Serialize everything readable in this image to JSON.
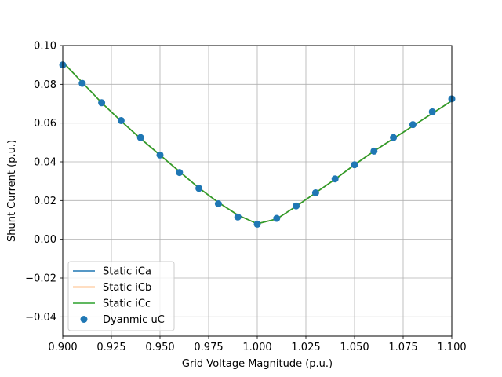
{
  "chart_data": {
    "type": "line",
    "title": "",
    "xlabel": "Grid Voltage Magnitude (p.u.)",
    "ylabel": "Shunt Current (p.u.)",
    "xlim": [
      0.9,
      1.1
    ],
    "ylim": [
      -0.05,
      0.1
    ],
    "xticks": [
      0.9,
      0.925,
      0.95,
      0.975,
      1.0,
      1.025,
      1.05,
      1.075,
      1.1
    ],
    "xtick_labels": [
      "0.900",
      "0.925",
      "0.950",
      "0.975",
      "1.000",
      "1.025",
      "1.050",
      "1.075",
      "1.100"
    ],
    "yticks": [
      -0.04,
      -0.02,
      0.0,
      0.02,
      0.04,
      0.06,
      0.08,
      0.1
    ],
    "ytick_labels": [
      "−0.04",
      "−0.02",
      "0.00",
      "0.02",
      "0.04",
      "0.06",
      "0.08",
      "0.10"
    ],
    "grid": true,
    "legend_position": "lower-left",
    "x": [
      0.9,
      0.91,
      0.92,
      0.93,
      0.94,
      0.95,
      0.96,
      0.97,
      0.98,
      0.99,
      1.0,
      1.01,
      1.02,
      1.03,
      1.04,
      1.05,
      1.06,
      1.07,
      1.08,
      1.09,
      1.1
    ],
    "series": [
      {
        "name": "Static iCa",
        "kind": "line",
        "color": "#1f77b4",
        "values": [
          0.0915,
          0.081,
          0.0705,
          0.061,
          0.052,
          0.0435,
          0.035,
          0.0265,
          0.019,
          0.0125,
          0.008,
          0.0105,
          0.017,
          0.024,
          0.031,
          0.0385,
          0.0455,
          0.052,
          0.0585,
          0.065,
          0.0715
        ]
      },
      {
        "name": "Static iCb",
        "kind": "line",
        "color": "#ff7f0e",
        "values": [
          0.0915,
          0.081,
          0.0705,
          0.061,
          0.052,
          0.0435,
          0.035,
          0.0265,
          0.019,
          0.0125,
          0.008,
          0.0105,
          0.017,
          0.024,
          0.031,
          0.0385,
          0.0455,
          0.052,
          0.0585,
          0.065,
          0.0715
        ]
      },
      {
        "name": "Static iCc",
        "kind": "line",
        "color": "#2ca02c",
        "values": [
          0.0915,
          0.081,
          0.0705,
          0.061,
          0.052,
          0.0435,
          0.035,
          0.0265,
          0.019,
          0.0125,
          0.008,
          0.0105,
          0.017,
          0.024,
          0.031,
          0.0385,
          0.0455,
          0.052,
          0.0585,
          0.065,
          0.0715
        ]
      },
      {
        "name": "Dyanmic uC",
        "kind": "scatter",
        "color": "#1f77b4",
        "values": [
          0.09,
          0.0805,
          0.0705,
          0.0613,
          0.0525,
          0.0435,
          0.0345,
          0.0263,
          0.0183,
          0.0115,
          0.0078,
          0.0108,
          0.0172,
          0.024,
          0.0312,
          0.0385,
          0.0455,
          0.0525,
          0.0592,
          0.0658,
          0.0725
        ]
      }
    ]
  }
}
